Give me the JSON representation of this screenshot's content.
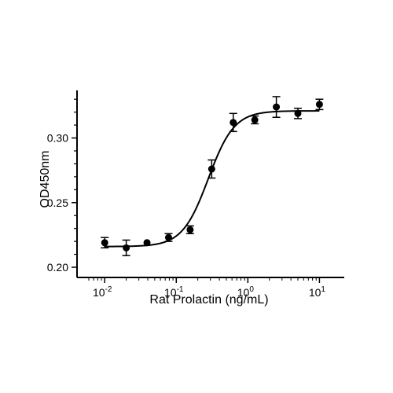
{
  "chart_data": {
    "type": "scatter",
    "title": "",
    "xlabel": "Rat Prolactin (ng/mL)",
    "ylabel": "OD450nm",
    "x_scale": "log",
    "xlim": [
      0.006,
      16
    ],
    "ylim": [
      0.2,
      0.335
    ],
    "x_ticks": [
      {
        "value": 0.01,
        "base": "10",
        "exp": "-2"
      },
      {
        "value": 0.1,
        "base": "10",
        "exp": "-1"
      },
      {
        "value": 1,
        "base": "10",
        "exp": "0"
      },
      {
        "value": 10,
        "base": "10",
        "exp": "1"
      }
    ],
    "y_ticks": [
      {
        "value": 0.2,
        "label": "0.20"
      },
      {
        "value": 0.25,
        "label": "0.25"
      },
      {
        "value": 0.3,
        "label": "0.30"
      }
    ],
    "grid": false,
    "legend": "none",
    "series": [
      {
        "points": [
          {
            "x": 0.01,
            "y": 0.219,
            "err": 0.004
          },
          {
            "x": 0.02,
            "y": 0.215,
            "err": 0.006
          },
          {
            "x": 0.039,
            "y": 0.219,
            "err": 0.0
          },
          {
            "x": 0.078,
            "y": 0.223,
            "err": 0.003
          },
          {
            "x": 0.156,
            "y": 0.229,
            "err": 0.003
          },
          {
            "x": 0.3125,
            "y": 0.276,
            "err": 0.007
          },
          {
            "x": 0.625,
            "y": 0.312,
            "err": 0.007
          },
          {
            "x": 1.25,
            "y": 0.314,
            "err": 0.003
          },
          {
            "x": 2.5,
            "y": 0.324,
            "err": 0.008
          },
          {
            "x": 5,
            "y": 0.319,
            "err": 0.004
          },
          {
            "x": 10,
            "y": 0.326,
            "err": 0.004
          }
        ],
        "fit": {
          "model": "4PL",
          "bottom": 0.216,
          "top": 0.321,
          "ec50": 0.28,
          "hill": 2.4
        }
      }
    ],
    "colors": {
      "line": "#000000",
      "marker": "#000000"
    }
  }
}
